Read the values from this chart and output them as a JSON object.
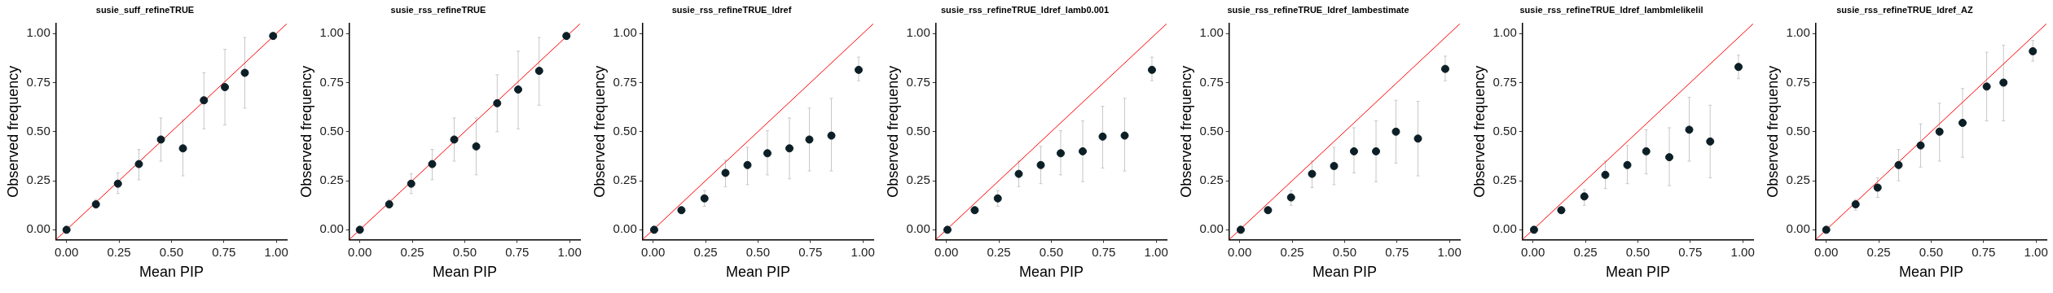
{
  "chart_data": [
    {
      "type": "scatter",
      "title": "susie_suff_refineTRUE",
      "xlabel": "Mean PIP",
      "ylabel": "Observed frequency",
      "xlim": [
        -0.05,
        1.05
      ],
      "ylim": [
        -0.05,
        1.05
      ],
      "xticks": [
        {
          "value": 0,
          "label": "0.00"
        },
        {
          "value": 0.25,
          "label": "0.25"
        },
        {
          "value": 0.5,
          "label": "0.50"
        },
        {
          "value": 0.75,
          "label": "0.75"
        },
        {
          "value": 1,
          "label": "1.00"
        }
      ],
      "yticks": [
        {
          "value": 0,
          "label": "0.00"
        },
        {
          "value": 0.25,
          "label": "0.25"
        },
        {
          "value": 0.5,
          "label": "0.50"
        },
        {
          "value": 0.75,
          "label": "0.75"
        },
        {
          "value": 1,
          "label": "1.00"
        }
      ],
      "marker": "circle",
      "legend": false,
      "grid": false,
      "series": [
        {
          "type": "line",
          "marker": "none",
          "color": "#ff0000",
          "x": [
            -0.05,
            1.05
          ],
          "values": [
            -0.05,
            1.05
          ]
        },
        {
          "color": "#0d1f26",
          "x": [
            0.0,
            0.14,
            0.245,
            0.345,
            0.45,
            0.555,
            0.655,
            0.755,
            0.85,
            0.985
          ],
          "values": [
            0.0,
            0.13,
            0.235,
            0.335,
            0.46,
            0.415,
            0.66,
            0.727,
            0.8,
            0.988
          ],
          "errors": [
            null,
            [
              0.11,
              0.155
            ],
            [
              0.185,
              0.29
            ],
            [
              0.255,
              0.41
            ],
            [
              0.35,
              0.57
            ],
            [
              0.275,
              0.56
            ],
            [
              0.515,
              0.8
            ],
            [
              0.535,
              0.92
            ],
            [
              0.62,
              0.98
            ],
            [
              0.97,
              1.0
            ]
          ]
        }
      ]
    },
    {
      "type": "scatter",
      "title": "susie_rss_refineTRUE",
      "xlabel": "Mean PIP",
      "ylabel": "Observed frequency",
      "xlim": [
        -0.05,
        1.05
      ],
      "ylim": [
        -0.05,
        1.05
      ],
      "xticks": [
        {
          "value": 0,
          "label": "0.00"
        },
        {
          "value": 0.25,
          "label": "0.25"
        },
        {
          "value": 0.5,
          "label": "0.50"
        },
        {
          "value": 0.75,
          "label": "0.75"
        },
        {
          "value": 1,
          "label": "1.00"
        }
      ],
      "yticks": [
        {
          "value": 0,
          "label": "0.00"
        },
        {
          "value": 0.25,
          "label": "0.25"
        },
        {
          "value": 0.5,
          "label": "0.50"
        },
        {
          "value": 0.75,
          "label": "0.75"
        },
        {
          "value": 1,
          "label": "1.00"
        }
      ],
      "marker": "circle",
      "legend": false,
      "grid": false,
      "series": [
        {
          "type": "line",
          "marker": "none",
          "color": "#ff0000",
          "x": [
            -0.05,
            1.05
          ],
          "values": [
            -0.05,
            1.05
          ]
        },
        {
          "color": "#0d1f26",
          "x": [
            0.0,
            0.14,
            0.245,
            0.345,
            0.45,
            0.555,
            0.655,
            0.755,
            0.855,
            0.985
          ],
          "values": [
            0.0,
            0.13,
            0.235,
            0.335,
            0.46,
            0.425,
            0.645,
            0.715,
            0.81,
            0.988
          ],
          "errors": [
            null,
            [
              0.11,
              0.155
            ],
            [
              0.185,
              0.285
            ],
            [
              0.255,
              0.41
            ],
            [
              0.35,
              0.57
            ],
            [
              0.28,
              0.57
            ],
            [
              0.5,
              0.79
            ],
            [
              0.515,
              0.91
            ],
            [
              0.635,
              0.98
            ],
            [
              0.97,
              1.0
            ]
          ]
        }
      ]
    },
    {
      "type": "scatter",
      "title": "susie_rss_refineTRUE_ldref",
      "xlabel": "Mean PIP",
      "ylabel": "Observed frequency",
      "xlim": [
        -0.05,
        1.05
      ],
      "ylim": [
        -0.05,
        1.05
      ],
      "xticks": [
        {
          "value": 0,
          "label": "0.00"
        },
        {
          "value": 0.25,
          "label": "0.25"
        },
        {
          "value": 0.5,
          "label": "0.50"
        },
        {
          "value": 0.75,
          "label": "0.75"
        },
        {
          "value": 1,
          "label": "1.00"
        }
      ],
      "yticks": [
        {
          "value": 0,
          "label": "0.00"
        },
        {
          "value": 0.25,
          "label": "0.25"
        },
        {
          "value": 0.5,
          "label": "0.50"
        },
        {
          "value": 0.75,
          "label": "0.75"
        },
        {
          "value": 1,
          "label": "1.00"
        }
      ],
      "marker": "circle",
      "legend": false,
      "grid": false,
      "series": [
        {
          "type": "line",
          "marker": "none",
          "color": "#ff0000",
          "x": [
            -0.05,
            1.05
          ],
          "values": [
            -0.05,
            1.05
          ]
        },
        {
          "color": "#0d1f26",
          "x": [
            0.005,
            0.135,
            0.245,
            0.345,
            0.45,
            0.545,
            0.65,
            0.745,
            0.85,
            0.98
          ],
          "values": [
            0.0,
            0.1,
            0.16,
            0.29,
            0.33,
            0.39,
            0.415,
            0.46,
            0.48,
            0.815
          ],
          "errors": [
            null,
            null,
            [
              0.12,
              0.2
            ],
            [
              0.22,
              0.355
            ],
            [
              0.23,
              0.42
            ],
            [
              0.28,
              0.505
            ],
            [
              0.26,
              0.57
            ],
            [
              0.3,
              0.62
            ],
            [
              0.3,
              0.67
            ],
            [
              0.76,
              0.88
            ]
          ]
        }
      ]
    },
    {
      "type": "scatter",
      "title": "susie_rss_refineTRUE_ldref_lamb0.001",
      "xlabel": "Mean PIP",
      "ylabel": "Observed frequency",
      "xlim": [
        -0.05,
        1.05
      ],
      "ylim": [
        -0.05,
        1.05
      ],
      "xticks": [
        {
          "value": 0,
          "label": "0.00"
        },
        {
          "value": 0.25,
          "label": "0.25"
        },
        {
          "value": 0.5,
          "label": "0.50"
        },
        {
          "value": 0.75,
          "label": "0.75"
        },
        {
          "value": 1,
          "label": "1.00"
        }
      ],
      "yticks": [
        {
          "value": 0,
          "label": "0.00"
        },
        {
          "value": 0.25,
          "label": "0.25"
        },
        {
          "value": 0.5,
          "label": "0.50"
        },
        {
          "value": 0.75,
          "label": "0.75"
        },
        {
          "value": 1,
          "label": "1.00"
        }
      ],
      "marker": "circle",
      "legend": false,
      "grid": false,
      "series": [
        {
          "type": "line",
          "marker": "none",
          "color": "#ff0000",
          "x": [
            -0.05,
            1.05
          ],
          "values": [
            -0.05,
            1.05
          ]
        },
        {
          "color": "#0d1f26",
          "x": [
            0.005,
            0.135,
            0.245,
            0.345,
            0.45,
            0.545,
            0.65,
            0.745,
            0.85,
            0.98
          ],
          "values": [
            0.0,
            0.1,
            0.16,
            0.285,
            0.33,
            0.39,
            0.4,
            0.475,
            0.48,
            0.815
          ],
          "errors": [
            null,
            null,
            [
              0.12,
              0.2
            ],
            [
              0.22,
              0.35
            ],
            [
              0.235,
              0.425
            ],
            [
              0.28,
              0.505
            ],
            [
              0.245,
              0.555
            ],
            [
              0.315,
              0.63
            ],
            [
              0.3,
              0.67
            ],
            [
              0.76,
              0.88
            ]
          ]
        }
      ]
    },
    {
      "type": "scatter",
      "title": "susie_rss_refineTRUE_ldref_lambestimate",
      "xlabel": "Mean PIP",
      "ylabel": "Observed frequency",
      "xlim": [
        -0.05,
        1.05
      ],
      "ylim": [
        -0.05,
        1.05
      ],
      "xticks": [
        {
          "value": 0,
          "label": "0.00"
        },
        {
          "value": 0.25,
          "label": "0.25"
        },
        {
          "value": 0.5,
          "label": "0.50"
        },
        {
          "value": 0.75,
          "label": "0.75"
        },
        {
          "value": 1,
          "label": "1.00"
        }
      ],
      "yticks": [
        {
          "value": 0,
          "label": "0.00"
        },
        {
          "value": 0.25,
          "label": "0.25"
        },
        {
          "value": 0.5,
          "label": "0.50"
        },
        {
          "value": 0.75,
          "label": "0.75"
        },
        {
          "value": 1,
          "label": "1.00"
        }
      ],
      "marker": "circle",
      "legend": false,
      "grid": false,
      "series": [
        {
          "type": "line",
          "marker": "none",
          "color": "#ff0000",
          "x": [
            -0.05,
            1.05
          ],
          "values": [
            -0.05,
            1.05
          ]
        },
        {
          "color": "#0d1f26",
          "x": [
            0.005,
            0.135,
            0.245,
            0.345,
            0.45,
            0.545,
            0.65,
            0.745,
            0.85,
            0.98
          ],
          "values": [
            0.0,
            0.1,
            0.165,
            0.285,
            0.325,
            0.4,
            0.4,
            0.5,
            0.465,
            0.82
          ],
          "errors": [
            null,
            null,
            [
              0.125,
              0.2
            ],
            [
              0.215,
              0.35
            ],
            [
              0.23,
              0.42
            ],
            [
              0.29,
              0.52
            ],
            [
              0.245,
              0.555
            ],
            [
              0.34,
              0.66
            ],
            [
              0.275,
              0.655
            ],
            [
              0.76,
              0.885
            ]
          ]
        }
      ]
    },
    {
      "type": "scatter",
      "title": "susie_rss_refineTRUE_ldref_lambmlelikelil",
      "xlabel": "Mean PIP",
      "ylabel": "Observed frequency",
      "xlim": [
        -0.05,
        1.05
      ],
      "ylim": [
        -0.05,
        1.05
      ],
      "xticks": [
        {
          "value": 0,
          "label": "0.00"
        },
        {
          "value": 0.25,
          "label": "0.25"
        },
        {
          "value": 0.5,
          "label": "0.50"
        },
        {
          "value": 0.75,
          "label": "0.75"
        },
        {
          "value": 1,
          "label": "1.00"
        }
      ],
      "yticks": [
        {
          "value": 0,
          "label": "0.00"
        },
        {
          "value": 0.25,
          "label": "0.25"
        },
        {
          "value": 0.5,
          "label": "0.50"
        },
        {
          "value": 0.75,
          "label": "0.75"
        },
        {
          "value": 1,
          "label": "1.00"
        }
      ],
      "marker": "circle",
      "legend": false,
      "grid": false,
      "series": [
        {
          "type": "line",
          "marker": "none",
          "color": "#ff0000",
          "x": [
            -0.05,
            1.05
          ],
          "values": [
            -0.05,
            1.05
          ]
        },
        {
          "color": "#0d1f26",
          "x": [
            0.005,
            0.135,
            0.245,
            0.345,
            0.45,
            0.54,
            0.65,
            0.745,
            0.845,
            0.98
          ],
          "values": [
            0.0,
            0.1,
            0.17,
            0.28,
            0.33,
            0.4,
            0.37,
            0.51,
            0.45,
            0.83
          ],
          "errors": [
            null,
            null,
            [
              0.125,
              0.205
            ],
            [
              0.21,
              0.35
            ],
            [
              0.235,
              0.43
            ],
            [
              0.285,
              0.51
            ],
            [
              0.225,
              0.52
            ],
            [
              0.35,
              0.675
            ],
            [
              0.265,
              0.635
            ],
            [
              0.77,
              0.89
            ]
          ]
        }
      ]
    },
    {
      "type": "scatter",
      "title": "susie_rss_refineTRUE_ldref_AZ",
      "xlabel": "Mean PIP",
      "ylabel": "Observed frequency",
      "xlim": [
        -0.05,
        1.05
      ],
      "ylim": [
        -0.05,
        1.05
      ],
      "xticks": [
        {
          "value": 0,
          "label": "0.00"
        },
        {
          "value": 0.25,
          "label": "0.25"
        },
        {
          "value": 0.5,
          "label": "0.50"
        },
        {
          "value": 0.75,
          "label": "0.75"
        },
        {
          "value": 1,
          "label": "1.00"
        }
      ],
      "yticks": [
        {
          "value": 0,
          "label": "0.00"
        },
        {
          "value": 0.25,
          "label": "0.25"
        },
        {
          "value": 0.5,
          "label": "0.50"
        },
        {
          "value": 0.75,
          "label": "0.75"
        },
        {
          "value": 1,
          "label": "1.00"
        }
      ],
      "marker": "circle",
      "legend": false,
      "grid": false,
      "series": [
        {
          "type": "line",
          "marker": "none",
          "color": "#ff0000",
          "x": [
            -0.05,
            1.05
          ],
          "values": [
            -0.05,
            1.05
          ]
        },
        {
          "color": "#0d1f26",
          "x": [
            0.0,
            0.14,
            0.245,
            0.345,
            0.45,
            0.54,
            0.65,
            0.765,
            0.845,
            0.985
          ],
          "values": [
            0.0,
            0.13,
            0.215,
            0.33,
            0.43,
            0.5,
            0.545,
            0.73,
            0.75,
            0.91
          ],
          "errors": [
            null,
            [
              0.1,
              0.155
            ],
            [
              0.165,
              0.265
            ],
            [
              0.25,
              0.41
            ],
            [
              0.32,
              0.54
            ],
            [
              0.35,
              0.645
            ],
            [
              0.37,
              0.72
            ],
            [
              0.555,
              0.905
            ],
            [
              0.555,
              0.94
            ],
            [
              0.86,
              0.965
            ]
          ]
        }
      ]
    }
  ]
}
